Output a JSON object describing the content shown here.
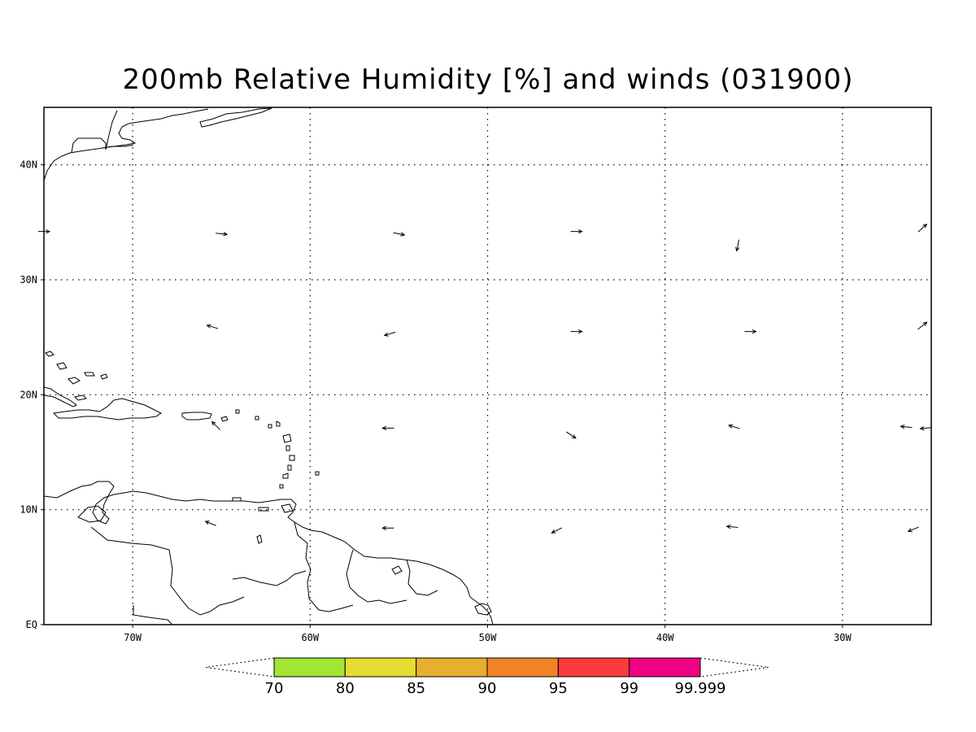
{
  "title": "200mb Relative Humidity [%] and winds (031900)",
  "map": {
    "lon_range": [
      -75,
      -25
    ],
    "lat_range": [
      0,
      45
    ],
    "lat_ticks": [
      {
        "lat": 40,
        "label": "40N"
      },
      {
        "lat": 30,
        "label": "30N"
      },
      {
        "lat": 20,
        "label": "20N"
      },
      {
        "lat": 10,
        "label": "10N"
      },
      {
        "lat": 0,
        "label": "EQ"
      }
    ],
    "lon_ticks": [
      {
        "lon": -70,
        "label": "70W"
      },
      {
        "lon": -60,
        "label": "60W"
      },
      {
        "lon": -50,
        "label": "50W"
      },
      {
        "lon": -40,
        "label": "40W"
      },
      {
        "lon": -30,
        "label": "30W"
      }
    ],
    "grid": "dotted"
  },
  "wind_vectors": [
    {
      "lon": -75.0,
      "lat": 34.2,
      "u": 1.0,
      "v": 0.0
    },
    {
      "lon": -65.0,
      "lat": 34.0,
      "u": 1.0,
      "v": -0.1
    },
    {
      "lon": -55.0,
      "lat": 34.0,
      "u": 1.0,
      "v": -0.2
    },
    {
      "lon": -45.0,
      "lat": 34.2,
      "u": 1.0,
      "v": 0.0
    },
    {
      "lon": -35.9,
      "lat": 33.0,
      "u": -0.2,
      "v": -1.0
    },
    {
      "lon": -25.5,
      "lat": 34.5,
      "u": 1.0,
      "v": 0.9
    },
    {
      "lon": -65.5,
      "lat": 25.9,
      "u": -1.0,
      "v": 0.3
    },
    {
      "lon": -55.5,
      "lat": 25.3,
      "u": -1.0,
      "v": -0.3
    },
    {
      "lon": -45.0,
      "lat": 25.5,
      "u": 1.0,
      "v": 0.0
    },
    {
      "lon": -35.2,
      "lat": 25.5,
      "u": 1.0,
      "v": 0.0
    },
    {
      "lon": -25.5,
      "lat": 26.0,
      "u": 1.0,
      "v": 0.8
    },
    {
      "lon": -65.3,
      "lat": 17.3,
      "u": -0.8,
      "v": 0.8
    },
    {
      "lon": -55.6,
      "lat": 17.1,
      "u": -1.0,
      "v": 0.0
    },
    {
      "lon": -45.3,
      "lat": 16.5,
      "u": 0.9,
      "v": -0.6
    },
    {
      "lon": -36.1,
      "lat": 17.2,
      "u": -1.0,
      "v": 0.3
    },
    {
      "lon": -26.4,
      "lat": 17.2,
      "u": -1.0,
      "v": 0.1
    },
    {
      "lon": -25.3,
      "lat": 17.1,
      "u": -1.0,
      "v": -0.1
    },
    {
      "lon": -65.6,
      "lat": 8.8,
      "u": -1.0,
      "v": 0.4
    },
    {
      "lon": -55.6,
      "lat": 8.4,
      "u": -1.0,
      "v": 0.0
    },
    {
      "lon": -46.1,
      "lat": 8.2,
      "u": -1.0,
      "v": -0.5
    },
    {
      "lon": -36.2,
      "lat": 8.5,
      "u": -1.0,
      "v": 0.1
    },
    {
      "lon": -26.0,
      "lat": 8.3,
      "u": -1.0,
      "v": -0.4
    }
  ],
  "colorbar": {
    "bins": [
      {
        "from": "70",
        "to": "80",
        "color": "#a0e632"
      },
      {
        "from": "80",
        "to": "85",
        "color": "#e6dc32"
      },
      {
        "from": "85",
        "to": "90",
        "color": "#e6af2d"
      },
      {
        "from": "90",
        "to": "95",
        "color": "#f08228"
      },
      {
        "from": "95",
        "to": "99",
        "color": "#fa3c3c"
      },
      {
        "from": "99",
        "to": "99.999",
        "color": "#f00082"
      }
    ],
    "labels": [
      "70",
      "80",
      "85",
      "90",
      "95",
      "99",
      "99.999"
    ]
  }
}
